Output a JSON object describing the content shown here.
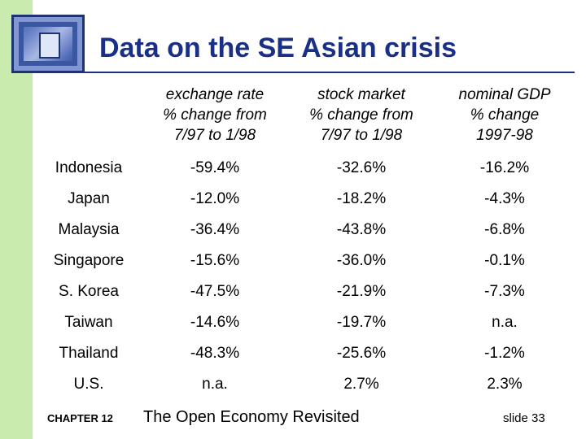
{
  "slide": {
    "title": "Data on the SE Asian crisis",
    "accent_color": "#1a2f86",
    "sidebar_color": "#c9ecae"
  },
  "table": {
    "headers": [
      {
        "lines": [
          "exchange rate",
          "% change from",
          "7/97 to 1/98"
        ]
      },
      {
        "lines": [
          "stock market",
          "% change from",
          "7/97 to 1/98"
        ]
      },
      {
        "lines": [
          "nominal GDP",
          "% change",
          "1997-98"
        ]
      }
    ],
    "rows": [
      {
        "country": "Indonesia",
        "exchange_rate": "-59.4%",
        "stock_market": "-32.6%",
        "nominal_gdp": "-16.2%"
      },
      {
        "country": "Japan",
        "exchange_rate": "-12.0%",
        "stock_market": "-18.2%",
        "nominal_gdp": "-4.3%"
      },
      {
        "country": "Malaysia",
        "exchange_rate": "-36.4%",
        "stock_market": "-43.8%",
        "nominal_gdp": "-6.8%"
      },
      {
        "country": "Singapore",
        "exchange_rate": "-15.6%",
        "stock_market": "-36.0%",
        "nominal_gdp": "-0.1%"
      },
      {
        "country": "S. Korea",
        "exchange_rate": "-47.5%",
        "stock_market": "-21.9%",
        "nominal_gdp": "-7.3%"
      },
      {
        "country": "Taiwan",
        "exchange_rate": "-14.6%",
        "stock_market": "-19.7%",
        "nominal_gdp": "n.a."
      },
      {
        "country": "Thailand",
        "exchange_rate": "-48.3%",
        "stock_market": "-25.6%",
        "nominal_gdp": "-1.2%"
      },
      {
        "country": "U.S.",
        "exchange_rate": "n.a.",
        "stock_market": "2.7%",
        "nominal_gdp": "2.3%"
      }
    ]
  },
  "footer": {
    "chapter": "CHAPTER 12",
    "course": "The Open Economy Revisited",
    "slide_number": "slide 33"
  }
}
